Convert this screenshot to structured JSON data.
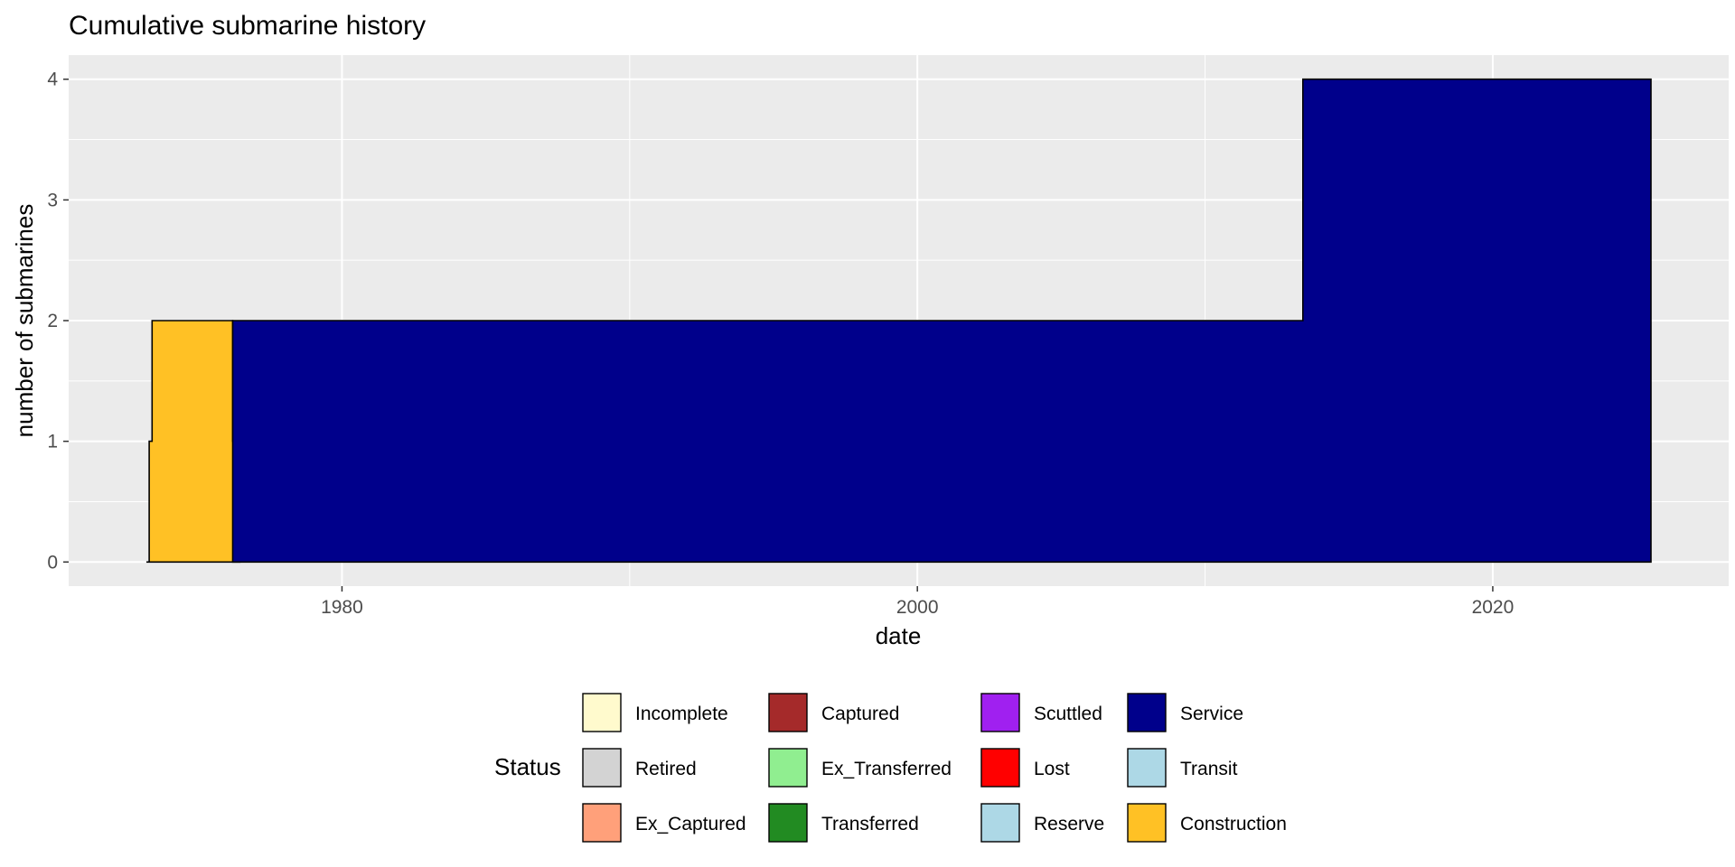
{
  "chart_data": {
    "type": "area",
    "title": "Cumulative submarine history",
    "xlabel": "date",
    "ylabel": "number of submarines",
    "xlim": [
      1970.5,
      2028.2
    ],
    "ylim": [
      -0.2,
      4.2
    ],
    "x_ticks": [
      1980,
      2000,
      2020
    ],
    "y_ticks": [
      0,
      1,
      2,
      3,
      4
    ],
    "grid": true,
    "legend_position": "bottom",
    "legend_title": "Status",
    "legend": [
      {
        "label": "Incomplete",
        "color": "#fffacd"
      },
      {
        "label": "Retired",
        "color": "#d3d3d3"
      },
      {
        "label": "Ex_Captured",
        "color": "#ffa07a"
      },
      {
        "label": "Captured",
        "color": "#a52a2a"
      },
      {
        "label": "Ex_Transferred",
        "color": "#90ee90"
      },
      {
        "label": "Transferred",
        "color": "#228b22"
      },
      {
        "label": "Scuttled",
        "color": "#a020f0"
      },
      {
        "label": "Lost",
        "color": "#ff0000"
      },
      {
        "label": "Reserve",
        "color": "#add8e6"
      },
      {
        "label": "Service",
        "color": "#00008b"
      },
      {
        "label": "Transit",
        "color": "#add8e6"
      },
      {
        "label": "Construction",
        "color": "#ffc125"
      }
    ],
    "series": [
      {
        "name": "Construction",
        "color": "#ffc125",
        "x": [
          1973.2,
          1973.3,
          1973.3,
          1973.4,
          1973.4,
          1976.2,
          1976.2,
          1976.45,
          1976.45
        ],
        "y": [
          0,
          0,
          1,
          1,
          2,
          2,
          1,
          1,
          0
        ]
      },
      {
        "name": "Service",
        "color": "#00008b",
        "x": [
          1976.2,
          1976.2,
          1976.45,
          1976.45,
          2013.4,
          2013.4,
          2025.5,
          2025.5
        ],
        "y": [
          0,
          2,
          2,
          2,
          2,
          4,
          4,
          0
        ]
      }
    ]
  }
}
